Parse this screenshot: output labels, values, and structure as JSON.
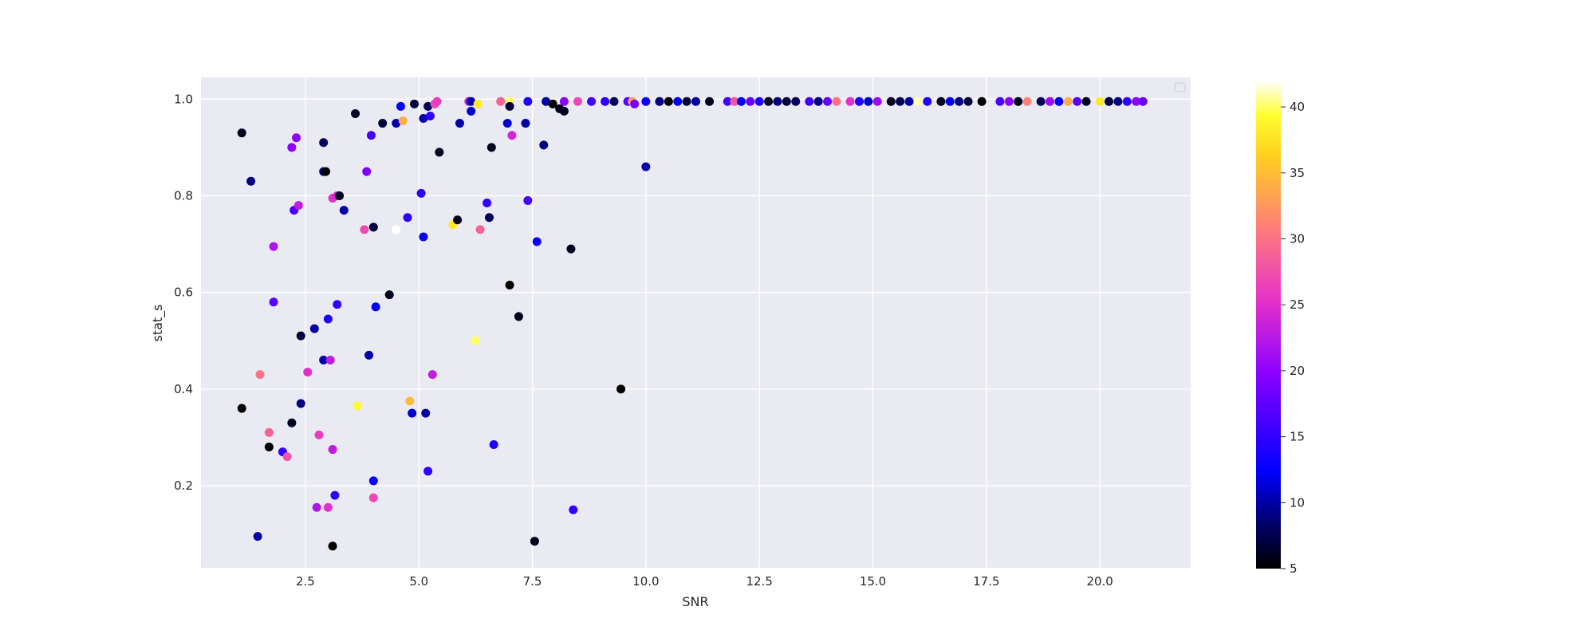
{
  "chart_data": {
    "type": "scatter",
    "xlabel": "SNR",
    "ylabel": "stat_s",
    "xlim": [
      0.2,
      22.0
    ],
    "ylim": [
      0.03,
      1.045
    ],
    "xticks": [
      "2.5",
      "5.0",
      "7.5",
      "10.0",
      "12.5",
      "15.0",
      "17.5",
      "20.0"
    ],
    "yticks": [
      "0.2",
      "0.4",
      "0.6",
      "0.8",
      "1.0"
    ],
    "grid": true,
    "legend": "upper-right (empty)",
    "colormap": "gnuplot2",
    "colorbar": {
      "range": [
        5,
        42
      ],
      "ticks": [
        "5",
        "10",
        "15",
        "20",
        "25",
        "30",
        "35",
        "40"
      ]
    },
    "points": [
      [
        1.1,
        0.93,
        6
      ],
      [
        1.3,
        0.83,
        9
      ],
      [
        1.1,
        0.36,
        5
      ],
      [
        1.45,
        0.095,
        10
      ],
      [
        1.5,
        0.43,
        30
      ],
      [
        1.7,
        0.28,
        5
      ],
      [
        1.7,
        0.31,
        29
      ],
      [
        1.8,
        0.695,
        22
      ],
      [
        1.8,
        0.58,
        17
      ],
      [
        2.0,
        0.27,
        15
      ],
      [
        2.1,
        0.26,
        28
      ],
      [
        2.2,
        0.9,
        20
      ],
      [
        2.25,
        0.77,
        16
      ],
      [
        2.3,
        0.92,
        20
      ],
      [
        2.35,
        0.78,
        23
      ],
      [
        2.4,
        0.51,
        7
      ],
      [
        2.4,
        0.37,
        9
      ],
      [
        2.2,
        0.33,
        6
      ],
      [
        2.55,
        0.435,
        25
      ],
      [
        2.7,
        0.525,
        10
      ],
      [
        2.75,
        0.155,
        22
      ],
      [
        2.8,
        0.305,
        26
      ],
      [
        2.9,
        0.91,
        8
      ],
      [
        2.9,
        0.85,
        9
      ],
      [
        2.95,
        0.85,
        5
      ],
      [
        2.9,
        0.46,
        10
      ],
      [
        3.0,
        0.545,
        14
      ],
      [
        3.05,
        0.46,
        23
      ],
      [
        3.0,
        0.155,
        25
      ],
      [
        3.1,
        0.275,
        23
      ],
      [
        3.1,
        0.795,
        25
      ],
      [
        3.15,
        0.18,
        15
      ],
      [
        3.1,
        0.075,
        5
      ],
      [
        3.2,
        0.8,
        24
      ],
      [
        3.25,
        0.8,
        6
      ],
      [
        3.2,
        0.575,
        15
      ],
      [
        3.35,
        0.77,
        10
      ],
      [
        3.6,
        0.97,
        6
      ],
      [
        3.65,
        0.365,
        39
      ],
      [
        3.8,
        0.73,
        27
      ],
      [
        3.85,
        0.85,
        19
      ],
      [
        3.9,
        0.47,
        10
      ],
      [
        3.95,
        0.925,
        16
      ],
      [
        4.0,
        0.735,
        7
      ],
      [
        4.05,
        0.57,
        12
      ],
      [
        4.0,
        0.21,
        13
      ],
      [
        4.0,
        0.175,
        27
      ],
      [
        4.2,
        0.95,
        7
      ],
      [
        4.35,
        0.595,
        6
      ],
      [
        4.5,
        0.95,
        10
      ],
      [
        4.5,
        0.73,
        42
      ],
      [
        4.6,
        0.985,
        12
      ],
      [
        4.65,
        0.955,
        34
      ],
      [
        4.75,
        0.755,
        15
      ],
      [
        4.8,
        0.375,
        35
      ],
      [
        4.85,
        0.35,
        11
      ],
      [
        4.9,
        0.99,
        7
      ],
      [
        5.05,
        0.805,
        15
      ],
      [
        5.1,
        0.96,
        10
      ],
      [
        5.1,
        0.715,
        12
      ],
      [
        5.2,
        0.985,
        8
      ],
      [
        5.15,
        0.35,
        10
      ],
      [
        5.25,
        0.965,
        15
      ],
      [
        5.2,
        0.23,
        15
      ],
      [
        5.35,
        0.99,
        27
      ],
      [
        5.3,
        0.43,
        23
      ],
      [
        5.4,
        0.995,
        26
      ],
      [
        5.45,
        0.89,
        6
      ],
      [
        5.75,
        0.74,
        38
      ],
      [
        5.85,
        0.75,
        6
      ],
      [
        5.9,
        0.95,
        10
      ],
      [
        6.1,
        0.995,
        23
      ],
      [
        6.15,
        0.995,
        10
      ],
      [
        6.15,
        0.975,
        11
      ],
      [
        6.25,
        0.5,
        40
      ],
      [
        6.3,
        0.99,
        38
      ],
      [
        6.35,
        0.73,
        29
      ],
      [
        6.5,
        0.785,
        15
      ],
      [
        6.55,
        0.755,
        8
      ],
      [
        6.6,
        0.9,
        6
      ],
      [
        6.65,
        0.285,
        14
      ],
      [
        6.8,
        0.995,
        29
      ],
      [
        6.95,
        0.95,
        11
      ],
      [
        7.0,
        0.995,
        40
      ],
      [
        7.0,
        0.985,
        7
      ],
      [
        7.05,
        0.925,
        24
      ],
      [
        7.0,
        0.615,
        5
      ],
      [
        7.2,
        0.55,
        6
      ],
      [
        7.35,
        0.95,
        10
      ],
      [
        7.4,
        0.995,
        14
      ],
      [
        7.4,
        0.79,
        16
      ],
      [
        7.55,
        0.085,
        6
      ],
      [
        7.6,
        0.705,
        13
      ],
      [
        7.75,
        0.905,
        9
      ],
      [
        7.8,
        0.995,
        10
      ],
      [
        7.95,
        0.99,
        5
      ],
      [
        8.1,
        0.98,
        6
      ],
      [
        8.2,
        0.975,
        6
      ],
      [
        8.2,
        0.995,
        20
      ],
      [
        8.35,
        0.69,
        6
      ],
      [
        8.4,
        0.15,
        15
      ],
      [
        8.5,
        0.995,
        27
      ],
      [
        8.8,
        0.995,
        16
      ],
      [
        9.1,
        0.995,
        15
      ],
      [
        9.3,
        0.995,
        8
      ],
      [
        9.45,
        0.4,
        5
      ],
      [
        9.6,
        0.995,
        17
      ],
      [
        9.7,
        0.995,
        33
      ],
      [
        9.75,
        0.99,
        19
      ],
      [
        10.0,
        0.86,
        10
      ],
      [
        10.0,
        0.995,
        13
      ],
      [
        10.3,
        0.995,
        9
      ],
      [
        10.5,
        0.995,
        5
      ],
      [
        10.7,
        0.995,
        12
      ],
      [
        10.9,
        0.995,
        7
      ],
      [
        11.1,
        0.995,
        10
      ],
      [
        11.4,
        0.995,
        6
      ],
      [
        11.8,
        0.995,
        16
      ],
      [
        11.95,
        0.995,
        28
      ],
      [
        12.1,
        0.995,
        12
      ],
      [
        12.3,
        0.995,
        18
      ],
      [
        12.5,
        0.995,
        14
      ],
      [
        12.7,
        0.995,
        6
      ],
      [
        12.9,
        0.995,
        9
      ],
      [
        13.1,
        0.995,
        7
      ],
      [
        13.3,
        0.995,
        8
      ],
      [
        13.6,
        0.995,
        16
      ],
      [
        13.8,
        0.995,
        9
      ],
      [
        14.0,
        0.995,
        18
      ],
      [
        14.2,
        0.995,
        30
      ],
      [
        14.5,
        0.995,
        25
      ],
      [
        14.7,
        0.995,
        14
      ],
      [
        14.9,
        0.995,
        11
      ],
      [
        15.1,
        0.995,
        21
      ],
      [
        15.4,
        0.995,
        6
      ],
      [
        15.6,
        0.995,
        8
      ],
      [
        15.8,
        0.995,
        10
      ],
      [
        16.0,
        0.995,
        41
      ],
      [
        16.2,
        0.995,
        14
      ],
      [
        16.5,
        0.995,
        6
      ],
      [
        16.7,
        0.995,
        12
      ],
      [
        16.9,
        0.995,
        9
      ],
      [
        17.1,
        0.995,
        7
      ],
      [
        17.4,
        0.995,
        5
      ],
      [
        17.8,
        0.995,
        16
      ],
      [
        18.0,
        0.995,
        20
      ],
      [
        18.2,
        0.995,
        6
      ],
      [
        18.4,
        0.995,
        31
      ],
      [
        18.7,
        0.995,
        8
      ],
      [
        18.9,
        0.995,
        21
      ],
      [
        19.1,
        0.995,
        12
      ],
      [
        19.3,
        0.995,
        34
      ],
      [
        19.5,
        0.995,
        17
      ],
      [
        19.7,
        0.995,
        6
      ],
      [
        20.0,
        0.995,
        38
      ],
      [
        20.2,
        0.995,
        7
      ],
      [
        20.4,
        0.995,
        9
      ],
      [
        20.6,
        0.995,
        15
      ],
      [
        20.8,
        0.995,
        20
      ],
      [
        20.95,
        0.995,
        18
      ]
    ]
  }
}
